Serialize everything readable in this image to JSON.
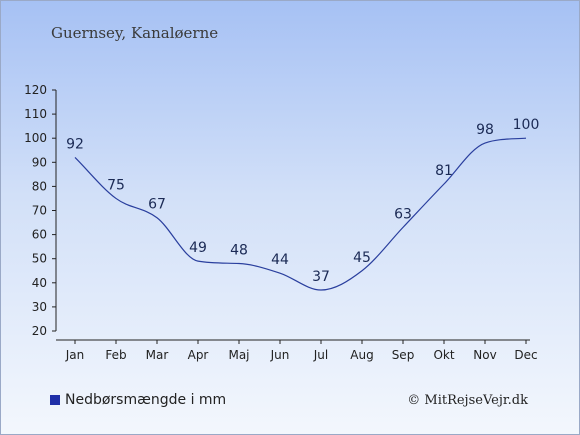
{
  "header": {
    "location": "Guernsey, Kanaløerne"
  },
  "legend": {
    "label": "Nedbørsmængde i mm",
    "swatch_color": "#1f2fa8"
  },
  "footer": {
    "copyright": "© MitRejseVejr.dk"
  },
  "colors": {
    "line": "#2a3f9e",
    "axis": "#222222"
  },
  "chart_data": {
    "type": "line",
    "categories": [
      "Jan",
      "Feb",
      "Mar",
      "Apr",
      "Maj",
      "Jun",
      "Jul",
      "Aug",
      "Sep",
      "Okt",
      "Nov",
      "Dec"
    ],
    "series": [
      {
        "name": "Nedbørsmængde i mm",
        "values": [
          92,
          75,
          67,
          49,
          48,
          44,
          37,
          45,
          63,
          81,
          98,
          100
        ]
      }
    ],
    "ylim": [
      20,
      120
    ],
    "yticks": [
      20,
      30,
      40,
      50,
      60,
      70,
      80,
      90,
      100,
      110,
      120
    ],
    "grid": false,
    "legend_position": "bottom-left",
    "smooth": true,
    "data_labels": true
  }
}
